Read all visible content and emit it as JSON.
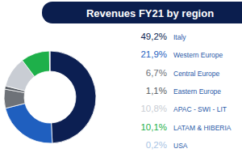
{
  "chart_data": {
    "type": "donut",
    "title": "Revenues FY21 by region",
    "categories": [
      "Italy",
      "Western Europe",
      "Central Europe",
      "Eastern Europe",
      "APAC - SWI - LIT",
      "LATAM & HIBERIA",
      "USA"
    ],
    "values": [
      49.2,
      21.9,
      6.7,
      1.1,
      10.8,
      10.1,
      0.2
    ],
    "value_labels": [
      "49,2%",
      "21,9%",
      "6,7%",
      "1,1%",
      "10,8%",
      "10,1%",
      "0,2%"
    ],
    "colors": [
      "#0c1f52",
      "#1f5fbf",
      "#6e7278",
      "#575c63",
      "#c9cdd4",
      "#1eb04a",
      "#a9c4e4"
    ],
    "data_labels": true,
    "legend": "right"
  }
}
